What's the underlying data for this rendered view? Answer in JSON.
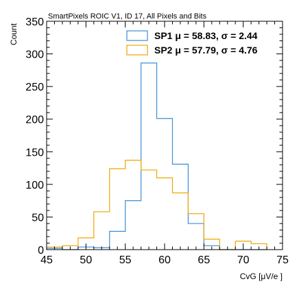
{
  "chart_data": {
    "type": "step-histogram",
    "title": "SmartPixels ROIC V1, ID 17, All Pixels and Bits",
    "xlabel": "CvG [μV/e ]",
    "ylabel": "Count",
    "xlim": [
      45,
      75
    ],
    "ylim": [
      0,
      350
    ],
    "x_ticks": [
      "45",
      "50",
      "55",
      "60",
      "65",
      "70",
      "75"
    ],
    "y_ticks": [
      "0",
      "50",
      "100",
      "150",
      "200",
      "250",
      "300",
      "350"
    ],
    "bin_edges": [
      45,
      47,
      49,
      51,
      53,
      55,
      57,
      59,
      61,
      63,
      65,
      67,
      69,
      71,
      73
    ],
    "series": [
      {
        "name": "SP1 μ = 58.83, σ = 2.44",
        "color": "#3b8ed6",
        "values": [
          2,
          0,
          4,
          3,
          28,
          75,
          286,
          201,
          131,
          40,
          6,
          0,
          0,
          0
        ]
      },
      {
        "name": "SP2 μ = 57.79, σ = 4.76",
        "color": "#f0a500",
        "values": [
          4,
          6,
          18,
          58,
          124,
          137,
          122,
          110,
          87,
          55,
          16,
          0,
          13,
          9
        ]
      }
    ],
    "legend_position": "top-right",
    "grid": false
  }
}
